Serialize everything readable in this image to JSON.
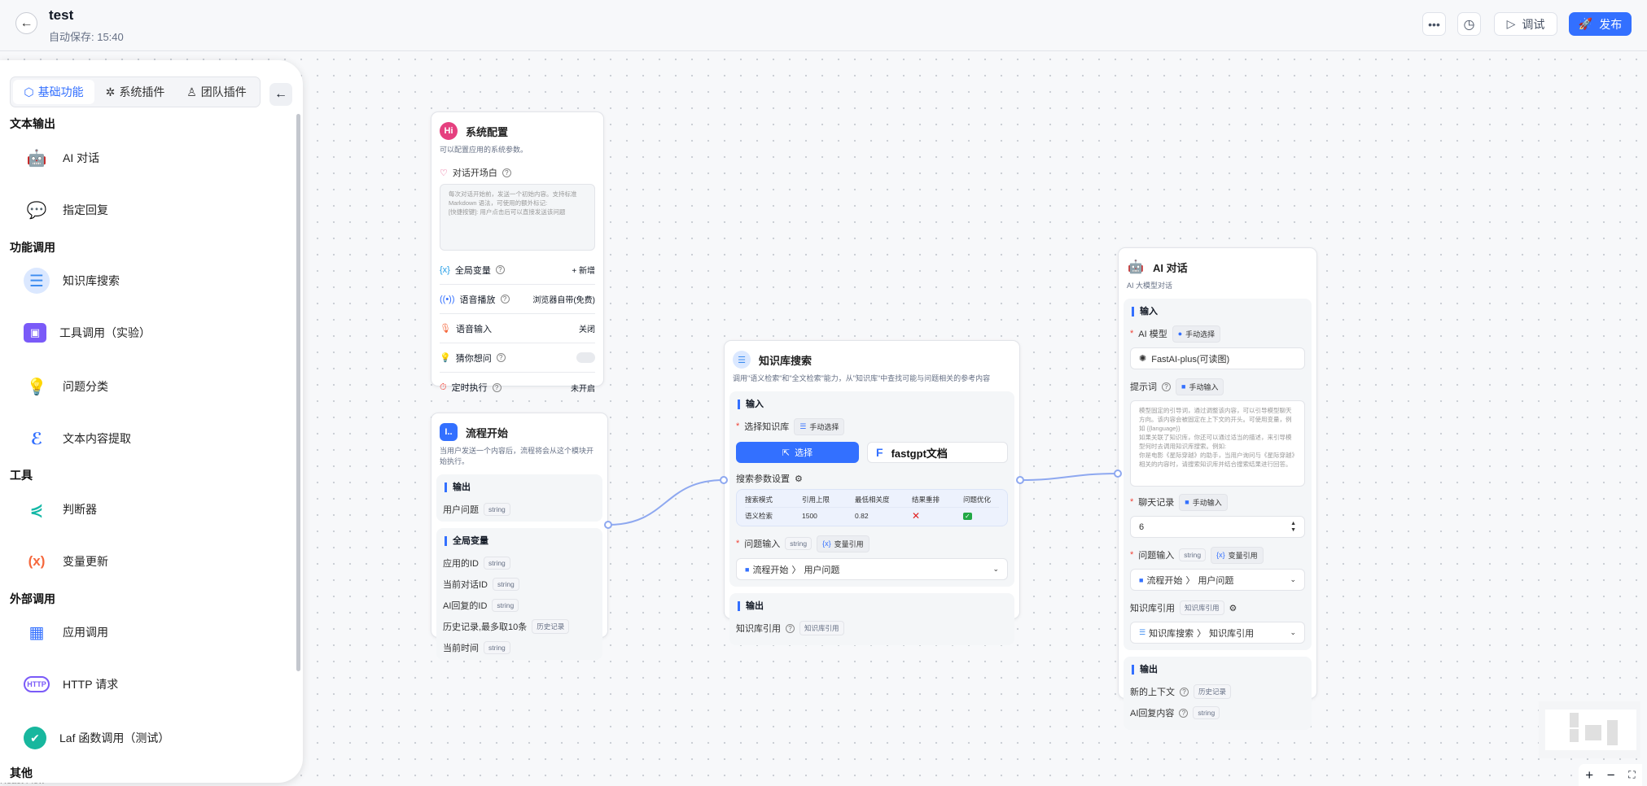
{
  "header": {
    "title": "test",
    "autosave": "自动保存: 15:40",
    "more_icon": "more-icon",
    "history_icon": "clock-icon",
    "debug": "调试",
    "publish": "发布",
    "accent": "#3370ff"
  },
  "sidebar": {
    "tabs": [
      {
        "label": "基础功能",
        "icon": "cube-icon",
        "active": true
      },
      {
        "label": "系统插件",
        "icon": "puzzle-icon"
      },
      {
        "label": "团队插件",
        "icon": "user-icon"
      }
    ],
    "groups": [
      {
        "title": "文本输出",
        "items": [
          {
            "label": "AI 对话",
            "icon": "robot-icon"
          },
          {
            "label": "指定回复",
            "icon": "message-icon"
          }
        ]
      },
      {
        "title": "功能调用",
        "items": [
          {
            "label": "知识库搜索",
            "icon": "database-icon"
          },
          {
            "label": "工具调用（实验）",
            "icon": "toolbox-icon"
          },
          {
            "label": "问题分类",
            "icon": "lightbulb-icon"
          },
          {
            "label": "文本内容提取",
            "icon": "extract-icon"
          }
        ]
      },
      {
        "title": "工具",
        "items": [
          {
            "label": "判断器",
            "icon": "branch-icon"
          },
          {
            "label": "变量更新",
            "icon": "variable-icon"
          }
        ]
      },
      {
        "title": "外部调用",
        "items": [
          {
            "label": "应用调用",
            "icon": "grid-icon"
          },
          {
            "label": "HTTP 请求",
            "icon": "http-icon"
          },
          {
            "label": "Laf 函数调用（测试）",
            "icon": "laf-icon"
          }
        ]
      },
      {
        "title": "其他"
      }
    ]
  },
  "attribution": "React Flow",
  "system_config": {
    "title": "系统配置",
    "desc": "可以配置应用的系统参数。",
    "welcome_label": "对话开场白",
    "welcome_placeholder": "每次对话开始前，发送一个初始内容。支持标准 Markdown 语法，可使用的额外标记:\n[快捷按键]: 用户点击后可以直接发送该问题",
    "rows": [
      {
        "label": "全局变量",
        "value": "+ 新增"
      },
      {
        "label": "语音播放",
        "value": "浏览器自带(免费)"
      },
      {
        "label": "语音输入",
        "value": "关闭"
      },
      {
        "label": "猜你想问",
        "toggle": false
      },
      {
        "label": "定时执行",
        "value": "未开启"
      }
    ]
  },
  "flow_start": {
    "title": "流程开始",
    "desc": "当用户发送一个内容后，流程将会从这个模块开始执行。",
    "output_label": "输出",
    "outputs": [
      {
        "label": "用户问题",
        "type": "string"
      }
    ],
    "globals_label": "全局变量",
    "globals": [
      {
        "label": "应用的ID",
        "type": "string"
      },
      {
        "label": "当前对话ID",
        "type": "string"
      },
      {
        "label": "AI回复的ID",
        "type": "string"
      },
      {
        "label": "历史记录,最多取10条",
        "type": "历史记录"
      },
      {
        "label": "当前时间",
        "type": "string"
      }
    ]
  },
  "kb_search": {
    "title": "知识库搜索",
    "desc": "调用\"语义检索\"和\"全文检索\"能力，从\"知识库\"中查找可能与问题相关的参考内容",
    "input_label": "输入",
    "select_kb": "选择知识库",
    "manual_select": "手动选择",
    "select_btn": "选择",
    "kb_name": "fastgpt文档",
    "params_label": "搜索参数设置",
    "table": {
      "headers": [
        "搜索模式",
        "引用上限",
        "最低相关度",
        "结果重排",
        "问题优化"
      ],
      "row": [
        "语义检索",
        "1500",
        "0.82",
        "✕",
        "✓"
      ]
    },
    "question_input": "问题输入",
    "type": "string",
    "var_ref": "变量引用",
    "question_value": "流程开始",
    "question_field": "用户问题",
    "output_label": "输出",
    "kb_quote": "知识库引用",
    "kb_quote_type": "知识库引用"
  },
  "ai_chat": {
    "title": "AI 对话",
    "desc": "AI 大模型对话",
    "input_label": "输入",
    "model_label": "AI 模型",
    "manual_select": "手动选择",
    "model": "FastAI-plus(可读图)",
    "prompt_label": "提示词",
    "manual_input": "手动输入",
    "prompt_placeholder": "模型固定的引导词，通过调整该内容，可以引导模型聊天方向。该内容会被固定在上下文的开头。可使用变量，例如 {{language}}\n如果关联了知识库，你还可以通过适当的描述，来引导模型何时去调用知识库搜索。例如:\n你是电影《星际穿越》的助手，当用户询问与《星际穿越》相关的内容时，请搜索知识库并结合搜索结果进行回答。",
    "history_label": "聊天记录",
    "history_value": "6",
    "question_input": "问题输入",
    "type": "string",
    "var_ref": "变量引用",
    "question_value": "流程开始",
    "question_field": "用户问题",
    "kb_quote": "知识库引用",
    "kb_quote_type": "知识库引用",
    "kb_value": "知识库搜索",
    "kb_field": "知识库引用",
    "output_label": "输出",
    "outputs": [
      {
        "label": "新的上下文",
        "type": "历史记录"
      },
      {
        "label": "AI回复内容",
        "type": "string"
      }
    ]
  }
}
